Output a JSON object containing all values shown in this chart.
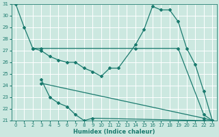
{
  "xlabel": "Humidex (Indice chaleur)",
  "xlim": [
    -0.5,
    23.5
  ],
  "ylim": [
    21,
    31
  ],
  "yticks": [
    21,
    22,
    23,
    24,
    25,
    26,
    27,
    28,
    29,
    30,
    31
  ],
  "xticks": [
    0,
    1,
    2,
    3,
    4,
    5,
    6,
    7,
    8,
    9,
    10,
    11,
    12,
    13,
    14,
    15,
    16,
    17,
    18,
    19,
    20,
    21,
    22,
    23
  ],
  "bg_color": "#cce8e0",
  "line_color": "#1a7a6e",
  "grid_color": "#ffffff",
  "lines": [
    {
      "x": [
        0,
        1,
        2
      ],
      "y": [
        31.0,
        29.0,
        27.2
      ]
    },
    {
      "x": [
        2,
        3,
        14,
        19,
        22,
        23
      ],
      "y": [
        27.2,
        27.2,
        27.2,
        27.2,
        21.5,
        21.0
      ]
    },
    {
      "x": [
        2,
        3,
        4,
        5,
        6,
        7,
        8,
        9,
        10,
        11,
        12,
        14,
        15,
        16,
        17,
        18,
        19,
        20,
        21,
        22,
        23
      ],
      "y": [
        27.2,
        27.0,
        26.5,
        26.2,
        26.0,
        26.0,
        25.5,
        25.2,
        24.8,
        25.5,
        25.5,
        27.5,
        28.8,
        30.8,
        30.5,
        30.5,
        29.5,
        27.2,
        25.8,
        23.5,
        21.0
      ]
    },
    {
      "x": [
        3,
        4,
        5,
        6,
        7,
        8,
        9,
        22,
        23
      ],
      "y": [
        24.5,
        23.0,
        22.5,
        22.2,
        21.5,
        21.0,
        21.2,
        21.0,
        21.0
      ]
    },
    {
      "x": [
        3,
        22,
        23
      ],
      "y": [
        24.2,
        21.2,
        21.0
      ]
    }
  ]
}
